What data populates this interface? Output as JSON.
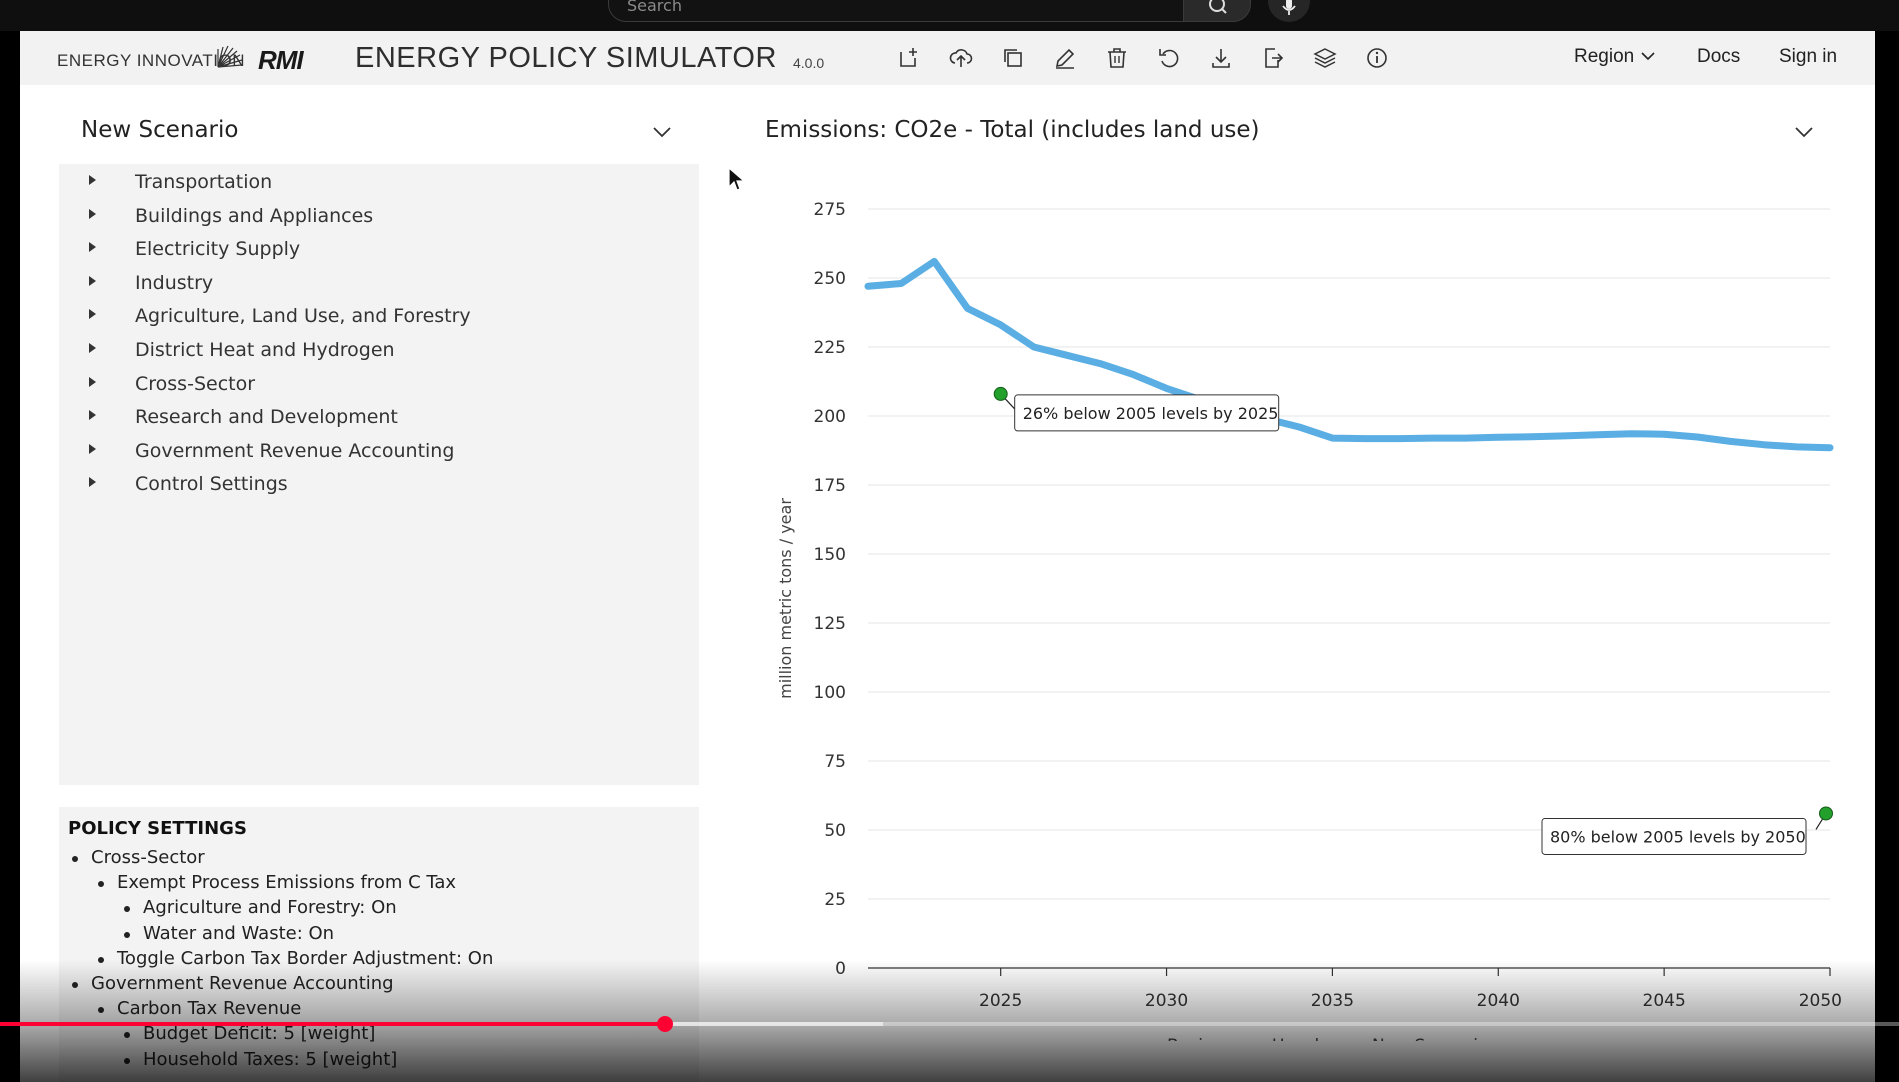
{
  "video": {
    "search_placeholder": "Search",
    "progress_fraction": 0.35,
    "buffer_fraction": 0.465,
    "progress_color": "#ff0033"
  },
  "header": {
    "brand_energy_innovation": "ENERGY INNOVATION",
    "brand_rmi": "RMI",
    "app_title": "ENERGY POLICY SIMULATOR",
    "version": "4.0.0",
    "tools": [
      "new-scenario-icon",
      "upload-icon",
      "copy-icon",
      "edit-icon",
      "delete-icon",
      "undo-icon",
      "download-icon",
      "export-icon",
      "layers-icon",
      "info-icon"
    ],
    "region_label": "Region",
    "docs_label": "Docs",
    "signin_label": "Sign in"
  },
  "scenario": {
    "title": "New Scenario",
    "categories": [
      "Transportation",
      "Buildings and Appliances",
      "Electricity Supply",
      "Industry",
      "Agriculture, Land Use, and Forestry",
      "District Heat and Hydrogen",
      "Cross-Sector",
      "Research and Development",
      "Government Revenue Accounting",
      "Control Settings"
    ]
  },
  "policy_settings": {
    "title": "POLICY SETTINGS",
    "items": [
      {
        "text": "Cross-Sector",
        "level": 0
      },
      {
        "text": "Exempt Process Emissions from C Tax",
        "level": 1
      },
      {
        "text": "Agriculture and Forestry: On",
        "level": 2
      },
      {
        "text": "Water and Waste: On",
        "level": 2
      },
      {
        "text": "Toggle Carbon Tax Border Adjustment: On",
        "level": 1
      },
      {
        "text": "Government Revenue Accounting",
        "level": 0
      },
      {
        "text": "Carbon Tax Revenue",
        "level": 1
      },
      {
        "text": "Budget Deficit: 5 [weight]",
        "level": 2
      },
      {
        "text": "Household Taxes: 5 [weight]",
        "level": 2
      }
    ]
  },
  "chart_data": {
    "type": "line",
    "title": "Emissions: CO2e - Total (includes land use)",
    "ylabel": "million metric tons / year",
    "xlim": [
      2021,
      2050
    ],
    "ylim": [
      0,
      275
    ],
    "x_ticks": [
      2025,
      2030,
      2035,
      2040,
      2045,
      2050
    ],
    "y_ticks": [
      0,
      25,
      50,
      75,
      100,
      125,
      150,
      175,
      200,
      225,
      250,
      275
    ],
    "grid": true,
    "legend_position": "bottom-center",
    "series": [
      {
        "name": "Business as Usual",
        "color": "#111111",
        "x": [],
        "y": []
      },
      {
        "name": "New Scenario",
        "color": "#5aaee3",
        "x": [
          2021,
          2022,
          2023,
          2024,
          2025,
          2026,
          2027,
          2028,
          2029,
          2030,
          2031,
          2032,
          2033,
          2034,
          2035,
          2036,
          2037,
          2038,
          2039,
          2040,
          2041,
          2042,
          2043,
          2044,
          2045,
          2046,
          2047,
          2048,
          2049,
          2050
        ],
        "y": [
          247,
          248,
          256,
          239,
          233,
          225,
          222,
          219,
          215,
          210,
          206,
          203,
          199,
          196,
          192,
          191.8,
          191.8,
          192,
          192,
          192.3,
          192.5,
          192.8,
          193.2,
          193.6,
          193.4,
          192.4,
          190.8,
          189.6,
          188.8,
          188.5
        ]
      }
    ],
    "annotations": [
      {
        "x": 2025,
        "y": 208,
        "text": "26% below 2005 levels by 2025",
        "marker_color": "#22a02b"
      },
      {
        "x": 2050,
        "y": 56,
        "text": "80% below 2005 levels by 2050",
        "marker_color": "#22a02b"
      }
    ]
  }
}
